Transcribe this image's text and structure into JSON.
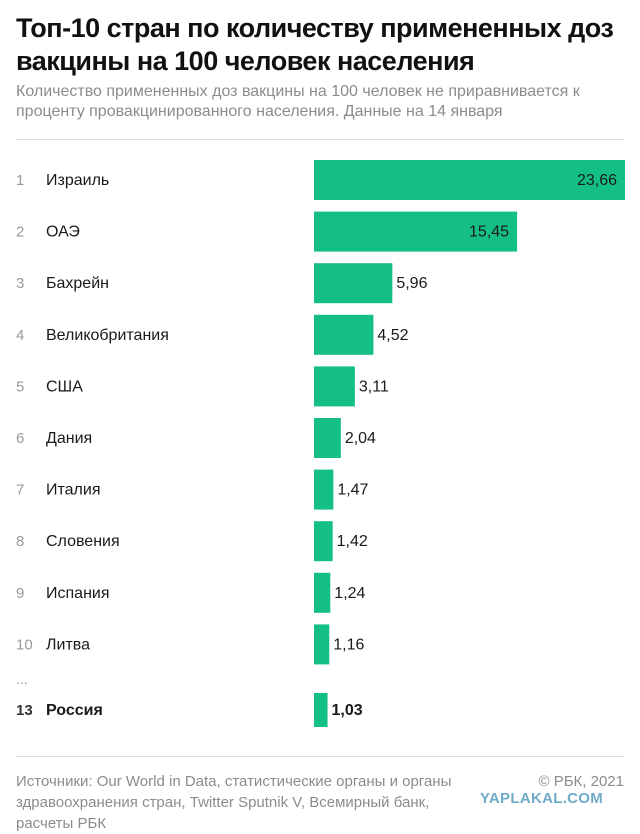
{
  "title": "Топ-10 стран по количеству примененных доз вакцины на 100 человек населения",
  "subtitle": "Количество примененных доз вакцины на 100 человек не приравнивается к проценту провакцинированного населения. Данные на 14 января",
  "ellipsis": "...",
  "footer": {
    "sources": "Источники: Our World in Data, статистические органы и органы здравоохранения стран, Twitter Sputnik V, Всемирный банк, расчеты РБК",
    "copyright": "© РБК, 2021",
    "watermark": "YAPLAKAL.COM"
  },
  "colors": {
    "bar": "#14bf85",
    "rank": "#9a9a9a",
    "text": "#1a1a1a"
  },
  "chart_data": {
    "type": "bar",
    "orientation": "horizontal",
    "ranks": [
      "1",
      "2",
      "3",
      "4",
      "5",
      "6",
      "7",
      "8",
      "9",
      "10",
      "13"
    ],
    "categories": [
      "Израиль",
      "ОАЭ",
      "Бахрейн",
      "Великобритания",
      "США",
      "Дания",
      "Италия",
      "Словения",
      "Испания",
      "Литва",
      "Россия"
    ],
    "values": [
      23.66,
      15.45,
      5.96,
      4.52,
      3.11,
      2.04,
      1.47,
      1.42,
      1.24,
      1.16,
      1.03
    ],
    "value_labels": [
      "23,66",
      "15,45",
      "5,96",
      "4,52",
      "3,11",
      "2,04",
      "1,47",
      "1,42",
      "1,24",
      "1,16",
      "1,03"
    ],
    "highlight_index": 10,
    "xlim": [
      0,
      23.66
    ],
    "grid": false,
    "legend": "none"
  }
}
